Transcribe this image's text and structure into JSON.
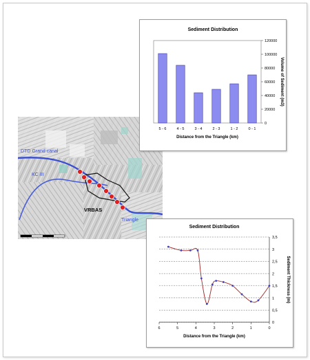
{
  "map": {
    "labels": {
      "canal": "DTD Grand canal",
      "kc": "KC III",
      "town": "VRBAS",
      "triangle": "Triangle"
    },
    "colors": {
      "canal": "#3a4fd0",
      "marker": "#e02020",
      "outline": "#111111"
    }
  },
  "chart_data": [
    {
      "type": "bar",
      "title": "Sediment Distribution",
      "xlabel": "Distance from the Triangle (km)",
      "ylabel": "Volume of Sediment (m3)",
      "categories": [
        "5 - 6",
        "4 - 5",
        "3 - 4",
        "2 - 3",
        "1 - 2",
        "0 - 1"
      ],
      "values": [
        101000,
        84000,
        44000,
        49000,
        57000,
        70000
      ],
      "ylim": [
        0,
        120000
      ],
      "yticks": [
        "0",
        "20000",
        "40000",
        "60000",
        "80000",
        "100000",
        "120000"
      ],
      "grid": false,
      "bar_color": "#8c8cf0"
    },
    {
      "type": "line",
      "title": "Sediment Distribution",
      "xlabel": "Distance from the Triangle (km)",
      "ylabel": "Sediment Thickness (m)",
      "xlim": [
        6,
        0
      ],
      "ylim": [
        0,
        3.5
      ],
      "xticks": [
        "6",
        "5",
        "4",
        "3",
        "2",
        "1",
        "0"
      ],
      "yticks": [
        "0",
        "0,5",
        "1",
        "1,5",
        "2",
        "2,5",
        "3",
        "3,5"
      ],
      "x": [
        5.5,
        4.8,
        4.3,
        3.9,
        3.7,
        3.4,
        3.1,
        2.9,
        2.5,
        2.0,
        1.5,
        1.0,
        0.6,
        0.0
      ],
      "y": [
        3.1,
        2.95,
        2.95,
        2.95,
        1.8,
        0.75,
        1.55,
        1.7,
        1.65,
        1.5,
        1.15,
        0.85,
        0.9,
        1.5
      ],
      "grid": true,
      "line_color": "#a02828"
    }
  ]
}
